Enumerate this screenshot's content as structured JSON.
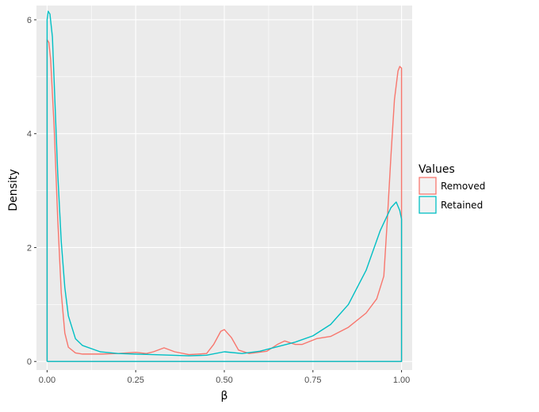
{
  "chart_data": {
    "type": "line",
    "title": "",
    "xlabel": "β",
    "ylabel": "Density",
    "xlim": [
      -0.03,
      1.03
    ],
    "ylim": [
      -0.15,
      6.25
    ],
    "x_ticks": [
      "0.00",
      "0.25",
      "0.50",
      "0.75",
      "1.00"
    ],
    "x_tick_values": [
      0,
      0.25,
      0.5,
      0.75,
      1.0
    ],
    "y_ticks": [
      "0",
      "2",
      "4",
      "6"
    ],
    "y_tick_values": [
      0,
      2,
      4,
      6
    ],
    "grid": true,
    "legend": {
      "title": "Values",
      "position": "right"
    },
    "series": [
      {
        "name": "Removed",
        "color": "#F8766D",
        "points": [
          [
            0,
            0
          ],
          [
            0,
            5.65
          ],
          [
            0.005,
            5.6
          ],
          [
            0.01,
            5.3
          ],
          [
            0.02,
            4.1
          ],
          [
            0.03,
            2.5
          ],
          [
            0.04,
            1.2
          ],
          [
            0.05,
            0.5
          ],
          [
            0.06,
            0.25
          ],
          [
            0.08,
            0.15
          ],
          [
            0.1,
            0.13
          ],
          [
            0.15,
            0.13
          ],
          [
            0.2,
            0.14
          ],
          [
            0.25,
            0.16
          ],
          [
            0.28,
            0.14
          ],
          [
            0.3,
            0.17
          ],
          [
            0.33,
            0.24
          ],
          [
            0.36,
            0.17
          ],
          [
            0.4,
            0.12
          ],
          [
            0.45,
            0.14
          ],
          [
            0.47,
            0.3
          ],
          [
            0.49,
            0.53
          ],
          [
            0.5,
            0.56
          ],
          [
            0.52,
            0.42
          ],
          [
            0.54,
            0.2
          ],
          [
            0.57,
            0.14
          ],
          [
            0.62,
            0.18
          ],
          [
            0.65,
            0.3
          ],
          [
            0.67,
            0.36
          ],
          [
            0.7,
            0.3
          ],
          [
            0.72,
            0.3
          ],
          [
            0.76,
            0.4
          ],
          [
            0.8,
            0.44
          ],
          [
            0.85,
            0.6
          ],
          [
            0.9,
            0.85
          ],
          [
            0.93,
            1.1
          ],
          [
            0.95,
            1.5
          ],
          [
            0.96,
            2.5
          ],
          [
            0.97,
            3.6
          ],
          [
            0.98,
            4.6
          ],
          [
            0.99,
            5.1
          ],
          [
            0.995,
            5.18
          ],
          [
            1.0,
            5.15
          ],
          [
            1.0,
            0
          ],
          [
            0,
            0
          ]
        ]
      },
      {
        "name": "Retained",
        "color": "#00BFC4",
        "points": [
          [
            0,
            0
          ],
          [
            0,
            6.0
          ],
          [
            0.003,
            6.15
          ],
          [
            0.008,
            6.1
          ],
          [
            0.015,
            5.7
          ],
          [
            0.02,
            4.9
          ],
          [
            0.03,
            3.3
          ],
          [
            0.04,
            2.1
          ],
          [
            0.05,
            1.3
          ],
          [
            0.06,
            0.8
          ],
          [
            0.08,
            0.4
          ],
          [
            0.1,
            0.28
          ],
          [
            0.15,
            0.17
          ],
          [
            0.2,
            0.14
          ],
          [
            0.25,
            0.13
          ],
          [
            0.3,
            0.12
          ],
          [
            0.35,
            0.11
          ],
          [
            0.4,
            0.1
          ],
          [
            0.45,
            0.11
          ],
          [
            0.5,
            0.17
          ],
          [
            0.55,
            0.14
          ],
          [
            0.6,
            0.18
          ],
          [
            0.65,
            0.26
          ],
          [
            0.7,
            0.34
          ],
          [
            0.75,
            0.45
          ],
          [
            0.8,
            0.65
          ],
          [
            0.85,
            1.0
          ],
          [
            0.9,
            1.6
          ],
          [
            0.94,
            2.3
          ],
          [
            0.97,
            2.7
          ],
          [
            0.985,
            2.8
          ],
          [
            0.995,
            2.65
          ],
          [
            1.0,
            2.5
          ],
          [
            1.0,
            0
          ],
          [
            0,
            0
          ]
        ]
      }
    ]
  }
}
